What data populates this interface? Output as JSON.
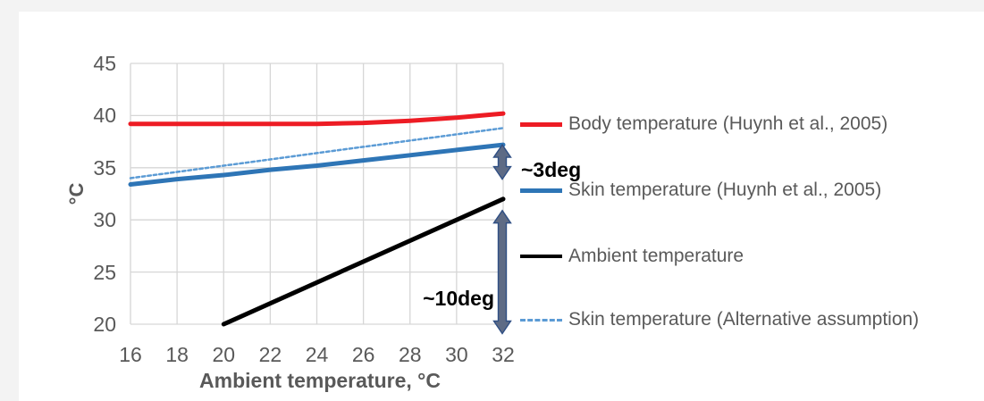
{
  "page": {
    "background_color": "#f3f3f3",
    "panel_color": "#ffffff",
    "gridline_color": "#d6d6d6",
    "text_color": "#595959"
  },
  "chart_data": {
    "type": "line",
    "title": "",
    "xlabel": "Ambient temperature, °C",
    "ylabel": "°C",
    "xlim": [
      16,
      32
    ],
    "ylim": [
      20,
      45
    ],
    "x_ticks": [
      16,
      18,
      20,
      22,
      24,
      26,
      28,
      30,
      32
    ],
    "y_ticks": [
      45,
      40,
      35,
      30,
      25,
      20
    ],
    "grid": true,
    "legend_position": "right",
    "x": [
      16,
      18,
      20,
      22,
      24,
      26,
      28,
      30,
      32
    ],
    "series": [
      {
        "id": "body-temperature",
        "name": "Body temperature (Huynh et al., 2005)",
        "color": "#ed1c24",
        "style": "solid",
        "width": 5,
        "values": [
          39.2,
          39.2,
          39.2,
          39.2,
          39.2,
          39.3,
          39.5,
          39.8,
          40.2
        ]
      },
      {
        "id": "skin-temperature",
        "name": "Skin temperature (Huynh et al., 2005)",
        "color": "#2e75b6",
        "style": "solid",
        "width": 5,
        "values": [
          33.4,
          33.9,
          34.3,
          34.8,
          35.2,
          35.7,
          36.2,
          36.7,
          37.2
        ]
      },
      {
        "id": "ambient-temperature",
        "name": "Ambient temperature",
        "color": "#000000",
        "style": "solid",
        "width": 5,
        "x": [
          20,
          32
        ],
        "values": [
          20,
          32
        ]
      },
      {
        "id": "skin-temperature-alt",
        "name": "Skin temperature (Alternative assumption)",
        "color": "#5b9bd5",
        "style": "dotted",
        "width": 2.5,
        "values": [
          34.0,
          34.6,
          35.2,
          35.8,
          36.4,
          37.0,
          37.6,
          38.2,
          38.8
        ]
      }
    ],
    "annotations": [
      {
        "id": "3deg",
        "label": "~3deg",
        "x": 32,
        "y_start": 37.2,
        "y_end": 33.9,
        "arrow_fill": "#5e6b85",
        "arrow_stroke": "#2f4f84"
      },
      {
        "id": "10deg",
        "label": "~10deg",
        "x": 32,
        "y_start": 30.9,
        "y_end": 19.1,
        "arrow_fill": "#5e6b85",
        "arrow_stroke": "#2f4f84"
      }
    ]
  }
}
